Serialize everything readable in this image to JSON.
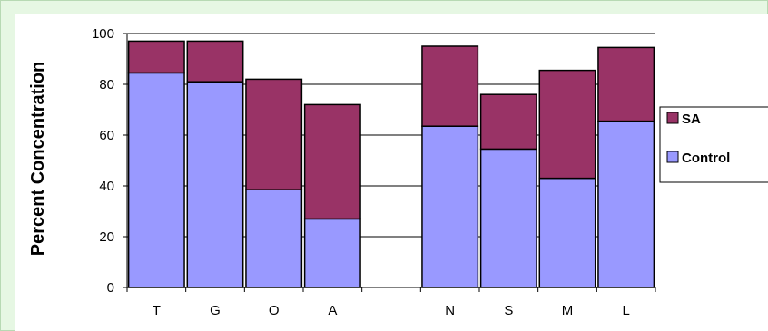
{
  "chart_data": {
    "type": "bar",
    "stacked": true,
    "categories": [
      "T",
      "G",
      "O",
      "A",
      "",
      "N",
      "S",
      "M",
      "L"
    ],
    "series": [
      {
        "name": "Control",
        "color": "#9999ff",
        "values": [
          84.5,
          81,
          38.5,
          27,
          null,
          63.5,
          54.5,
          43,
          65.5
        ]
      },
      {
        "name": "SA",
        "color": "#993366",
        "values": [
          12.5,
          16,
          43.5,
          45,
          null,
          31.5,
          21.5,
          42.5,
          29
        ]
      }
    ],
    "ylabel": "Percent Concentration",
    "xlabel": "",
    "ylim": [
      0,
      100
    ],
    "yticks": [
      0,
      20,
      40,
      60,
      80,
      100
    ],
    "grid": true,
    "legend": {
      "position": "right",
      "entries": [
        "SA",
        "Control"
      ]
    }
  }
}
